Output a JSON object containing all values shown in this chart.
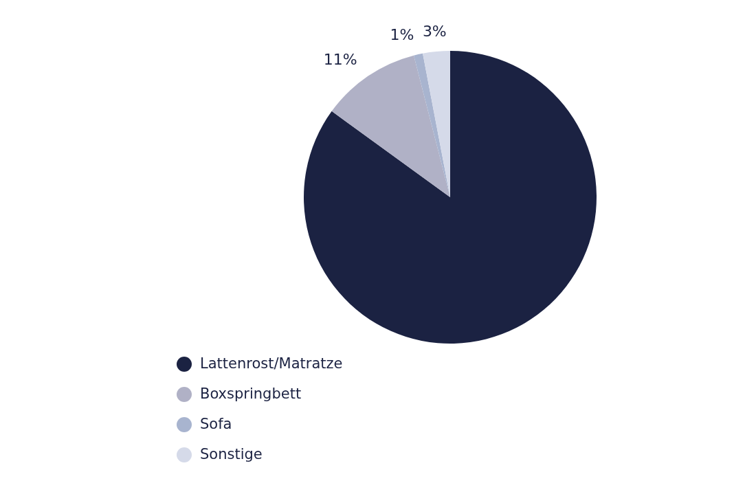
{
  "chart_data": {
    "type": "pie",
    "categories": [
      "Lattenrost/Matratze",
      "Boxspringbett",
      "Sofa",
      "Sonstige"
    ],
    "values": [
      85,
      11,
      1,
      3
    ],
    "colors": [
      "#1b2242",
      "#b0b1c6",
      "#a8b4cf",
      "#d5dae9"
    ],
    "value_labels": [
      null,
      "11%",
      "1%",
      "3%"
    ],
    "legend": "bottom"
  }
}
